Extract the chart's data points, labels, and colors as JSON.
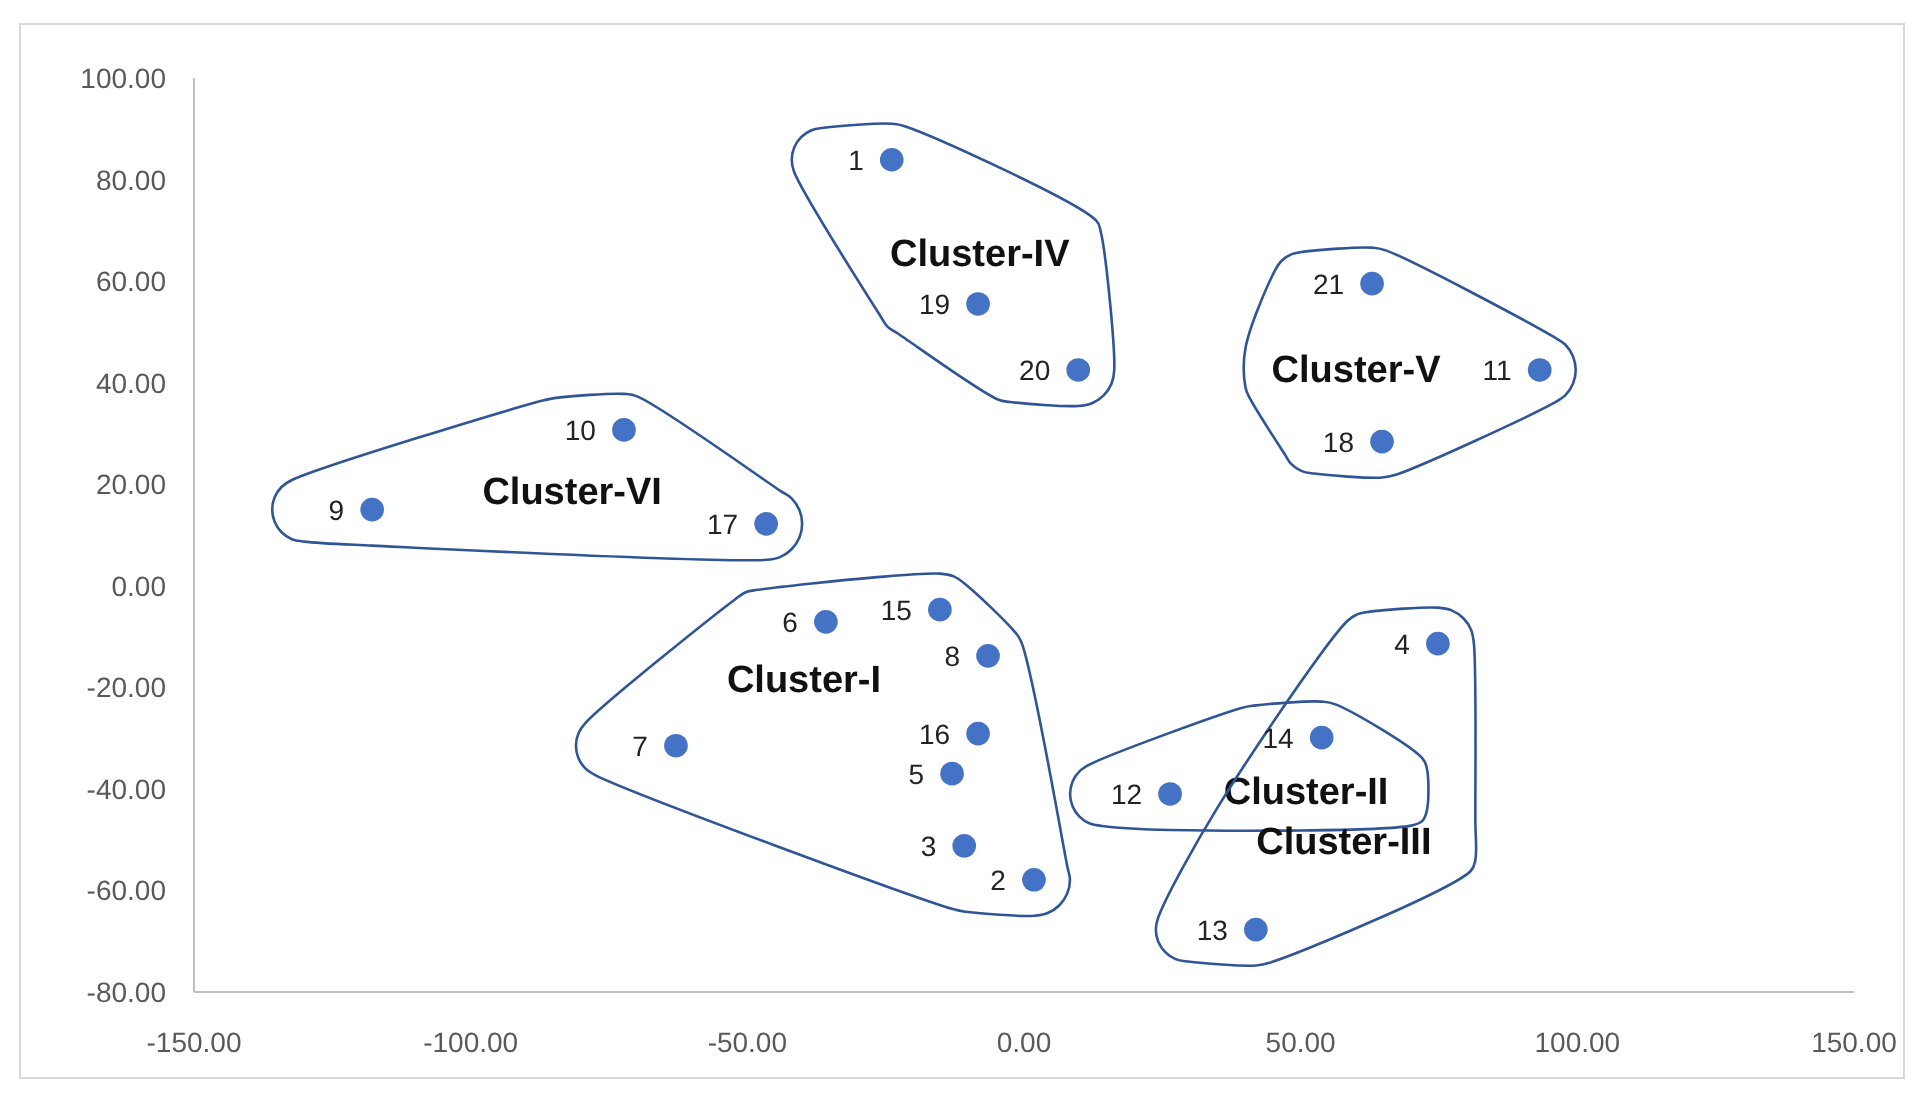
{
  "chart_data": {
    "type": "scatter",
    "marker": "circle",
    "grid": false,
    "xlim": [
      -150,
      150
    ],
    "ylim": [
      -80,
      100
    ],
    "xticks": [
      {
        "value": -150,
        "label": "-150.00"
      },
      {
        "value": -100,
        "label": "-100.00"
      },
      {
        "value": -50,
        "label": "-50.00"
      },
      {
        "value": 0,
        "label": "0.00"
      },
      {
        "value": 50,
        "label": "50.00"
      },
      {
        "value": 100,
        "label": "100.00"
      },
      {
        "value": 150,
        "label": "150.00"
      }
    ],
    "yticks": [
      {
        "value": -80,
        "label": "-80.00"
      },
      {
        "value": -60,
        "label": "-60.00"
      },
      {
        "value": -40,
        "label": "-40.00"
      },
      {
        "value": -20,
        "label": "-20.00"
      },
      {
        "value": 0,
        "label": "0.00"
      },
      {
        "value": 20,
        "label": "20.00"
      },
      {
        "value": 40,
        "label": "40.00"
      },
      {
        "value": 60,
        "label": "60.00"
      },
      {
        "value": 80,
        "label": "80.00"
      },
      {
        "value": 100,
        "label": "100.00"
      }
    ],
    "series": [
      {
        "name": "Cluster-I",
        "color": "#4472c4",
        "x": [
          -35.8,
          -15.2,
          -6.5,
          -62.9,
          -8.3,
          -13,
          -10.8,
          1.8
        ],
        "values": [
          -7.1,
          -4.7,
          -13.8,
          -31.5,
          -29.1,
          -37,
          -51.2,
          -57.9
        ]
      },
      {
        "name": "Cluster-II",
        "color": "#4472c4",
        "x": [
          53.8,
          26.4
        ],
        "values": [
          -29.9,
          -41
        ]
      },
      {
        "name": "Cluster-III",
        "color": "#4472c4",
        "x": [
          74.8,
          41.9
        ],
        "values": [
          -11.4,
          -67.7
        ]
      },
      {
        "name": "Cluster-IV",
        "color": "#4472c4",
        "x": [
          -23.9,
          -8.3,
          9.8
        ],
        "values": [
          83.9,
          55.5,
          42.5
        ]
      },
      {
        "name": "Cluster-V",
        "color": "#4472c4",
        "x": [
          62.9,
          93.2,
          64.7
        ],
        "values": [
          59.5,
          42.5,
          28.4
        ]
      },
      {
        "name": "Cluster-VI",
        "color": "#4472c4",
        "x": [
          -72.3,
          -117.8,
          -46.6
        ],
        "values": [
          30.7,
          15,
          12.2
        ]
      }
    ],
    "annotations": [
      {
        "text": "6",
        "x": -35.8,
        "y": -7.1
      },
      {
        "text": "15",
        "x": -15.2,
        "y": -4.7
      },
      {
        "text": "8",
        "x": -6.5,
        "y": -13.8
      },
      {
        "text": "7",
        "x": -62.9,
        "y": -31.5
      },
      {
        "text": "16",
        "x": -8.3,
        "y": -29.1
      },
      {
        "text": "5",
        "x": -13,
        "y": -37
      },
      {
        "text": "3",
        "x": -10.8,
        "y": -51.2
      },
      {
        "text": "2",
        "x": 1.8,
        "y": -57.9
      },
      {
        "text": "14",
        "x": 53.8,
        "y": -29.9
      },
      {
        "text": "12",
        "x": 26.4,
        "y": -41
      },
      {
        "text": "4",
        "x": 74.8,
        "y": -11.4
      },
      {
        "text": "13",
        "x": 41.9,
        "y": -67.7
      },
      {
        "text": "1",
        "x": -23.9,
        "y": 83.9
      },
      {
        "text": "19",
        "x": -8.3,
        "y": 55.5
      },
      {
        "text": "20",
        "x": 9.8,
        "y": 42.5
      },
      {
        "text": "21",
        "x": 62.9,
        "y": 59.5
      },
      {
        "text": "11",
        "x": 93.2,
        "y": 42.5
      },
      {
        "text": "18",
        "x": 64.7,
        "y": 28.4
      },
      {
        "text": "10",
        "x": -72.3,
        "y": 30.7
      },
      {
        "text": "9",
        "x": -117.8,
        "y": 15
      },
      {
        "text": "17",
        "x": -46.6,
        "y": 12.2
      }
    ]
  }
}
